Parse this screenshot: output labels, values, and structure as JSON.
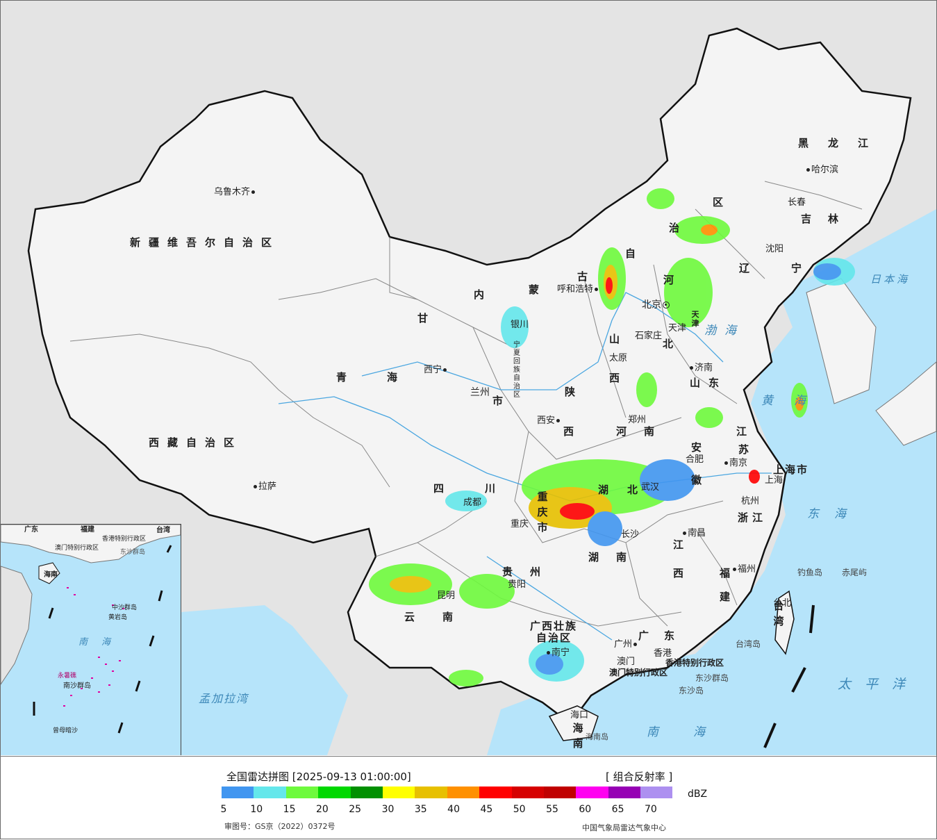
{
  "colors": {
    "land": "#f4f4f4",
    "background": "#e4e4e4",
    "sea": "#b6e4fa",
    "border": "#111111",
    "province_border": "#777777",
    "river": "#4aa6e0"
  },
  "map": {
    "provinces": [
      {
        "id": "xinjiang",
        "text": "新疆维吾尔自治区"
      },
      {
        "id": "xizang",
        "text": "西藏自治区"
      },
      {
        "id": "qinghai-a",
        "text": "青"
      },
      {
        "id": "qinghai-b",
        "text": "海"
      },
      {
        "id": "gansu",
        "text": "甘"
      },
      {
        "id": "neimeng-a",
        "text": "内"
      },
      {
        "id": "neimeng-b",
        "text": "蒙"
      },
      {
        "id": "neimeng-c",
        "text": "古"
      },
      {
        "id": "neimeng-d",
        "text": "自"
      },
      {
        "id": "neimeng-e",
        "text": "治"
      },
      {
        "id": "neimeng-f",
        "text": "区"
      },
      {
        "id": "heilongjiang",
        "text": "黑龙江"
      },
      {
        "id": "jilin",
        "text": "吉林"
      },
      {
        "id": "liaoning-a",
        "text": "辽"
      },
      {
        "id": "liaoning-b",
        "text": "宁"
      },
      {
        "id": "hebei-a",
        "text": "河"
      },
      {
        "id": "hebei-b",
        "text": "北"
      },
      {
        "id": "shanxi-a",
        "text": "山"
      },
      {
        "id": "shanxi-b",
        "text": "西"
      },
      {
        "id": "shandong",
        "text": "山东"
      },
      {
        "id": "shaanxi-a",
        "text": "陕"
      },
      {
        "id": "shaanxi-b",
        "text": "西"
      },
      {
        "id": "henan-a",
        "text": "河"
      },
      {
        "id": "henan-b",
        "text": "南"
      },
      {
        "id": "jiangsu-a",
        "text": "江"
      },
      {
        "id": "jiangsu-b",
        "text": "苏"
      },
      {
        "id": "anhui-a",
        "text": "安"
      },
      {
        "id": "anhui-b",
        "text": "徽"
      },
      {
        "id": "sichuan-a",
        "text": "四"
      },
      {
        "id": "sichuan-b",
        "text": "川"
      },
      {
        "id": "hubei-a",
        "text": "湖"
      },
      {
        "id": "hubei-b",
        "text": "北"
      },
      {
        "id": "chongqing",
        "text": "重庆市"
      },
      {
        "id": "zhejiang",
        "text": "浙江"
      },
      {
        "id": "hunan-a",
        "text": "湖"
      },
      {
        "id": "hunan-b",
        "text": "南"
      },
      {
        "id": "jiangxi-a",
        "text": "江"
      },
      {
        "id": "jiangxi-b",
        "text": "西"
      },
      {
        "id": "fujian-a",
        "text": "福"
      },
      {
        "id": "fujian-b",
        "text": "建"
      },
      {
        "id": "guizhou-a",
        "text": "贵"
      },
      {
        "id": "guizhou-b",
        "text": "州"
      },
      {
        "id": "yunnan-a",
        "text": "云"
      },
      {
        "id": "yunnan-b",
        "text": "南"
      },
      {
        "id": "guangxi-a",
        "text": "广西壮族"
      },
      {
        "id": "guangxi-b",
        "text": "自治区"
      },
      {
        "id": "guangdong",
        "text": "广东"
      },
      {
        "id": "taiwan",
        "text": "台湾"
      },
      {
        "id": "hainan",
        "text": "海南"
      },
      {
        "id": "shanghai",
        "text": "上海市"
      },
      {
        "id": "tianjin",
        "text": "天津"
      },
      {
        "id": "gansu-city",
        "text": "兰州"
      },
      {
        "id": "gansu-shi",
        "text": "市"
      },
      {
        "id": "ningxia",
        "text": "宁夏回族自治区"
      },
      {
        "id": "hongkong",
        "text": "香港特别行政区"
      },
      {
        "id": "macau",
        "text": "澳门特别行政区"
      }
    ],
    "cities": [
      {
        "id": "urumqi",
        "text": "乌鲁木齐"
      },
      {
        "id": "lhasa",
        "text": "拉萨"
      },
      {
        "id": "xining",
        "text": "西宁"
      },
      {
        "id": "yinchuan",
        "text": "银川"
      },
      {
        "id": "hohhot",
        "text": "呼和浩特"
      },
      {
        "id": "beijing",
        "text": "北京"
      },
      {
        "id": "shijiazhuang",
        "text": "石家庄"
      },
      {
        "id": "taiyuan",
        "text": "太原"
      },
      {
        "id": "jinan",
        "text": "济南"
      },
      {
        "id": "xian",
        "text": "西安"
      },
      {
        "id": "zhengzhou",
        "text": "郑州"
      },
      {
        "id": "hefei",
        "text": "合肥"
      },
      {
        "id": "nanjing",
        "text": "南京"
      },
      {
        "id": "shanghai",
        "text": "上海"
      },
      {
        "id": "hangzhou",
        "text": "杭州"
      },
      {
        "id": "wuhan",
        "text": "武汉"
      },
      {
        "id": "chengdu",
        "text": "成都"
      },
      {
        "id": "chongqing",
        "text": "重庆"
      },
      {
        "id": "changsha",
        "text": "长沙"
      },
      {
        "id": "nanchang",
        "text": "南昌"
      },
      {
        "id": "fuzhou",
        "text": "福州"
      },
      {
        "id": "guiyang",
        "text": "贵阳"
      },
      {
        "id": "kunming",
        "text": "昆明"
      },
      {
        "id": "nanning",
        "text": "南宁"
      },
      {
        "id": "guangzhou",
        "text": "广州"
      },
      {
        "id": "hongkong",
        "text": "香港"
      },
      {
        "id": "macau",
        "text": "澳门"
      },
      {
        "id": "haikou",
        "text": "海口"
      },
      {
        "id": "taipei",
        "text": "台北"
      },
      {
        "id": "harbin",
        "text": "哈尔滨"
      },
      {
        "id": "changchun",
        "text": "长春"
      },
      {
        "id": "shenyang",
        "text": "沈阳"
      },
      {
        "id": "tianjin",
        "text": "天津"
      }
    ],
    "seas": [
      {
        "id": "sea-japan",
        "text": "日本海"
      },
      {
        "id": "sea-bohai",
        "text": "渤海"
      },
      {
        "id": "sea-yellow",
        "text": "黄海"
      },
      {
        "id": "sea-east",
        "text": "东海"
      },
      {
        "id": "sea-pacific",
        "text": "太平洋"
      },
      {
        "id": "sea-south",
        "text": "南海"
      },
      {
        "id": "sea-bengal",
        "text": "孟加拉湾"
      }
    ],
    "islands": [
      {
        "id": "diaoyu",
        "text": "钓鱼岛"
      },
      {
        "id": "chiwei",
        "text": "赤尾屿"
      },
      {
        "id": "taiwan-island",
        "text": "台湾岛"
      },
      {
        "id": "dongsha",
        "text": "东沙群岛"
      },
      {
        "id": "dongsha-dao",
        "text": "东沙岛"
      },
      {
        "id": "hainan-dao",
        "text": "海南岛"
      }
    ]
  },
  "inset": {
    "labels": [
      {
        "id": "inset-guangdong",
        "text": "广东"
      },
      {
        "id": "inset-fujian",
        "text": "福建"
      },
      {
        "id": "inset-taiwan",
        "text": "台湾"
      },
      {
        "id": "inset-hk",
        "text": "香港特别行政区"
      },
      {
        "id": "inset-macau",
        "text": "澳门特别行政区"
      },
      {
        "id": "inset-dongsha",
        "text": "东沙群岛"
      },
      {
        "id": "inset-hainan",
        "text": "海南"
      },
      {
        "id": "inset-zhongsha",
        "text": "中沙群岛"
      },
      {
        "id": "inset-huangyan",
        "text": "黄岩岛"
      },
      {
        "id": "inset-nanhai",
        "text": "南海"
      },
      {
        "id": "inset-yongshu",
        "text": "永暑礁"
      },
      {
        "id": "inset-nansha",
        "text": "南沙群岛"
      },
      {
        "id": "inset-zengmu",
        "text": "曾母暗沙"
      }
    ]
  },
  "legend": {
    "title": "全国雷达拼图 [2025-09-13 01:00:00]",
    "product": "[ 组合反射率 ]",
    "unit": "dBZ",
    "colors": [
      "#4196f0",
      "#64e7eb",
      "#6efa3d",
      "#00d800",
      "#019001",
      "#ffff00",
      "#e7c000",
      "#ff9000",
      "#ff0000",
      "#d60000",
      "#c00000",
      "#ff00f0",
      "#9600b4",
      "#ad90f0"
    ],
    "ticks": [
      "5",
      "10",
      "15",
      "20",
      "25",
      "30",
      "35",
      "40",
      "45",
      "50",
      "55",
      "60",
      "65",
      "70"
    ],
    "approval": "审图号：GS京（2022）0372号",
    "source": "中国气象局雷达气象中心"
  }
}
